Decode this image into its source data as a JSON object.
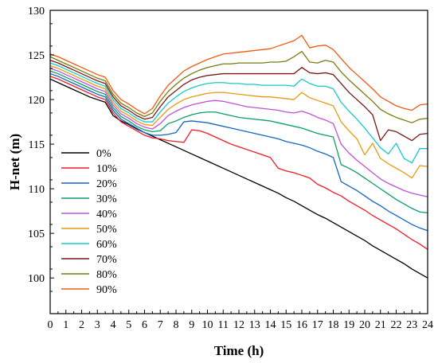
{
  "chart_data": {
    "type": "line",
    "title": "",
    "xlabel": "Time (h)",
    "ylabel": "H-net (m)",
    "xlim": [
      0,
      24
    ],
    "ylim": [
      96,
      130
    ],
    "xticks": [
      0,
      1,
      2,
      3,
      4,
      5,
      6,
      7,
      8,
      9,
      10,
      11,
      12,
      13,
      14,
      15,
      16,
      17,
      18,
      19,
      20,
      21,
      22,
      23,
      24
    ],
    "yticks": [
      100,
      105,
      110,
      115,
      120,
      125,
      130
    ],
    "grid": false,
    "legend_position": "bottom-left",
    "x": [
      0,
      0.5,
      1,
      1.5,
      2,
      2.5,
      3,
      3.5,
      4,
      4.5,
      5,
      5.5,
      6,
      6.5,
      7,
      7.5,
      8,
      8.5,
      9,
      9.5,
      10,
      10.5,
      11,
      11.5,
      12,
      12.5,
      13,
      13.5,
      14,
      14.5,
      15,
      15.5,
      16,
      16.5,
      17,
      17.5,
      18,
      18.5,
      19,
      19.5,
      20,
      20.5,
      21,
      21.5,
      22,
      22.5,
      23,
      23.5,
      24
    ],
    "series": [
      {
        "name": "0%",
        "color": "#000000",
        "values": [
          122.3,
          121.9,
          121.5,
          121.1,
          120.7,
          120.3,
          120.0,
          119.7,
          118.2,
          117.6,
          117.2,
          116.7,
          116.3,
          115.9,
          115.5,
          115.1,
          114.7,
          114.3,
          113.9,
          113.5,
          113.1,
          112.7,
          112.3,
          111.9,
          111.5,
          111.1,
          110.7,
          110.3,
          109.9,
          109.5,
          109.0,
          108.6,
          108.1,
          107.6,
          107.1,
          106.7,
          106.2,
          105.7,
          105.2,
          104.7,
          104.2,
          103.6,
          103.1,
          102.6,
          102.1,
          101.6,
          101.0,
          100.5,
          100.0
        ]
      },
      {
        "name": "10%",
        "color": "#ee1c25",
        "values": [
          122.6,
          122.3,
          121.9,
          121.5,
          121.1,
          120.7,
          120.3,
          120.0,
          118.5,
          117.5,
          117.0,
          116.5,
          116.0,
          115.7,
          115.6,
          115.4,
          115.3,
          115.2,
          116.6,
          116.5,
          116.2,
          115.8,
          115.4,
          115.0,
          114.7,
          114.4,
          114.1,
          113.8,
          113.5,
          112.3,
          112.0,
          111.8,
          111.5,
          111.2,
          110.5,
          110.1,
          109.6,
          109.2,
          108.6,
          108.1,
          107.6,
          107.0,
          106.5,
          106.0,
          105.5,
          104.9,
          104.3,
          103.8,
          103.2
        ]
      },
      {
        "name": "20%",
        "color": "#1565c0",
        "values": [
          122.9,
          122.6,
          122.2,
          121.8,
          121.4,
          121.0,
          120.6,
          120.3,
          118.8,
          117.8,
          117.3,
          116.8,
          116.3,
          116.0,
          116.0,
          116.1,
          116.3,
          117.5,
          117.6,
          117.5,
          117.4,
          117.2,
          117.0,
          116.8,
          116.6,
          116.4,
          116.2,
          116.0,
          115.8,
          115.6,
          115.3,
          115.1,
          114.9,
          114.6,
          114.2,
          113.9,
          113.5,
          110.8,
          110.3,
          109.8,
          109.2,
          108.6,
          108.1,
          107.5,
          107.0,
          106.5,
          106.0,
          105.6,
          105.3
        ]
      },
      {
        "name": "30%",
        "color": "#0a9e67",
        "values": [
          123.2,
          122.9,
          122.5,
          122.1,
          121.7,
          121.3,
          120.9,
          120.6,
          119.1,
          118.1,
          117.6,
          117.0,
          116.6,
          116.4,
          116.5,
          117.3,
          117.6,
          118.0,
          118.3,
          118.5,
          118.6,
          118.6,
          118.4,
          118.2,
          118.0,
          117.9,
          117.8,
          117.7,
          117.6,
          117.4,
          117.2,
          117.0,
          116.8,
          116.5,
          116.2,
          116.0,
          115.8,
          112.7,
          112.3,
          111.8,
          111.2,
          110.6,
          110.0,
          109.4,
          108.8,
          108.3,
          107.8,
          107.4,
          107.3
        ]
      },
      {
        "name": "40%",
        "color": "#c050d8",
        "values": [
          123.5,
          123.2,
          122.8,
          122.4,
          122.0,
          121.6,
          121.2,
          120.9,
          119.4,
          118.4,
          117.9,
          117.3,
          116.9,
          116.7,
          117.3,
          118.2,
          118.7,
          119.1,
          119.4,
          119.6,
          119.8,
          119.9,
          119.8,
          119.6,
          119.4,
          119.2,
          119.1,
          119.0,
          118.9,
          118.8,
          118.6,
          118.5,
          118.7,
          118.4,
          118.0,
          117.7,
          117.3,
          115.0,
          114.0,
          113.2,
          112.5,
          111.8,
          111.1,
          110.6,
          110.2,
          109.8,
          109.5,
          109.3,
          109.1
        ]
      },
      {
        "name": "50%",
        "color": "#e89a10",
        "values": [
          123.8,
          123.5,
          123.1,
          122.7,
          122.3,
          121.9,
          121.5,
          121.2,
          119.7,
          118.7,
          118.2,
          117.6,
          117.2,
          117.1,
          118.0,
          118.9,
          119.5,
          120.0,
          120.3,
          120.5,
          120.7,
          120.8,
          120.8,
          120.7,
          120.6,
          120.5,
          120.4,
          120.3,
          120.3,
          120.2,
          120.1,
          120.0,
          120.8,
          120.2,
          119.9,
          119.6,
          119.3,
          117.5,
          116.5,
          115.6,
          113.8,
          115.1,
          113.4,
          112.8,
          112.3,
          111.8,
          111.2,
          112.6,
          112.5
        ]
      },
      {
        "name": "60%",
        "color": "#18c8c8",
        "values": [
          124.1,
          123.8,
          123.4,
          123.0,
          122.6,
          122.2,
          121.8,
          121.5,
          120.0,
          119.0,
          118.5,
          117.9,
          117.5,
          117.5,
          118.6,
          119.6,
          120.3,
          120.9,
          121.3,
          121.6,
          121.8,
          121.9,
          121.9,
          121.8,
          121.8,
          121.7,
          121.7,
          121.6,
          121.6,
          121.6,
          121.6,
          121.5,
          122.3,
          121.8,
          121.5,
          121.5,
          121.2,
          119.7,
          118.7,
          117.8,
          116.8,
          115.7,
          114.6,
          113.9,
          115.1,
          113.4,
          112.9,
          114.5,
          114.5
        ]
      },
      {
        "name": "70%",
        "color": "#7a1818",
        "values": [
          124.4,
          124.1,
          123.7,
          123.3,
          122.9,
          122.5,
          122.1,
          121.8,
          120.3,
          119.3,
          118.8,
          118.2,
          117.8,
          118.0,
          119.2,
          120.3,
          121.0,
          121.7,
          122.2,
          122.5,
          122.7,
          122.8,
          122.9,
          122.9,
          122.9,
          122.9,
          122.9,
          122.9,
          122.9,
          122.9,
          122.9,
          122.9,
          123.6,
          123.0,
          122.9,
          123.0,
          122.8,
          121.8,
          120.8,
          120.0,
          119.2,
          118.3,
          115.4,
          116.6,
          116.4,
          115.9,
          115.4,
          116.1,
          116.2
        ]
      },
      {
        "name": "80%",
        "color": "#7a7a10",
        "values": [
          124.8,
          124.4,
          124.0,
          123.6,
          123.2,
          122.8,
          122.4,
          122.1,
          120.6,
          119.6,
          119.1,
          118.5,
          118.1,
          118.5,
          119.8,
          120.9,
          121.7,
          122.4,
          122.9,
          123.3,
          123.6,
          123.8,
          124.0,
          124.0,
          124.1,
          124.1,
          124.1,
          124.1,
          124.2,
          124.2,
          124.3,
          124.8,
          125.4,
          124.2,
          124.1,
          124.4,
          124.2,
          123.1,
          122.2,
          121.4,
          120.6,
          119.8,
          118.9,
          118.4,
          118.0,
          117.7,
          117.4,
          117.8,
          117.9
        ]
      },
      {
        "name": "90%",
        "color": "#f05a10",
        "values": [
          125.1,
          124.8,
          124.4,
          124.0,
          123.6,
          123.2,
          122.8,
          122.5,
          121.0,
          120.0,
          119.5,
          118.9,
          118.4,
          119.0,
          120.4,
          121.6,
          122.4,
          123.2,
          123.7,
          124.1,
          124.5,
          124.8,
          125.1,
          125.2,
          125.3,
          125.4,
          125.5,
          125.6,
          125.7,
          126.0,
          126.3,
          126.6,
          127.2,
          125.8,
          126.0,
          126.1,
          125.6,
          124.6,
          123.6,
          122.8,
          122.0,
          121.2,
          120.3,
          119.8,
          119.3,
          119.0,
          118.8,
          119.4,
          119.5
        ]
      }
    ]
  }
}
